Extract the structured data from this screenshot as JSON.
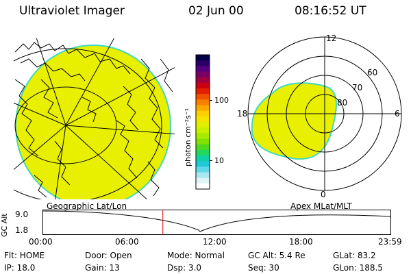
{
  "header": {
    "title": "Ultraviolet Imager",
    "date": "02 Jun 00",
    "time": "08:16:52 UT"
  },
  "colorbar": {
    "unit_label": "photon cm⁻²s⁻¹",
    "ticks": [
      {
        "value": 100,
        "label": "100"
      },
      {
        "value": 10,
        "label": "10"
      }
    ],
    "colors": [
      "#000044",
      "#2a0066",
      "#55007a",
      "#7a0066",
      "#a00040",
      "#cc0010",
      "#e02000",
      "#f05000",
      "#f88000",
      "#fca800",
      "#ffd000",
      "#f4e400",
      "#e0ef00",
      "#c8f000",
      "#a8ea00",
      "#80e000",
      "#50d820",
      "#20d860",
      "#10d0a8",
      "#20c8d8",
      "#60d8e8",
      "#a8e8f0",
      "#e0f4f8",
      "#ffffff"
    ]
  },
  "geo_map": {
    "label": "Geographic Lat/Lon",
    "fill_color": "#e8f000",
    "edge_color": "#40d8c0"
  },
  "polar_plot": {
    "label": "Apex MLat/MLT",
    "mlt_labels": [
      "12",
      "18",
      "6",
      "0"
    ],
    "lat_labels": [
      "60",
      "70",
      "80"
    ],
    "fill_color": "#e8f000",
    "edge_color": "#40d8c0"
  },
  "altitude_plot": {
    "ylabel": "GC Alt",
    "ytick_labels": [
      "9.0",
      "1.8"
    ],
    "xtick_labels": [
      "00:00",
      "06:00",
      "12:00",
      "18:00",
      "23:59"
    ],
    "marker_time_hours": 8.28,
    "marker_color": "#dd0000"
  },
  "info": {
    "row1": {
      "flt": "Flt: HOME",
      "door": "Door: Open",
      "mode": "Mode: Normal",
      "gc_alt": "GC Alt: 5.4 Re",
      "glat": "GLat: 83.2"
    },
    "row2": {
      "ip": "IP: 18.0",
      "gain": "Gain: 13",
      "dsp": "Dsp: 3.0",
      "seq": "Seq: 30",
      "glon": "GLon: 188.5"
    }
  }
}
